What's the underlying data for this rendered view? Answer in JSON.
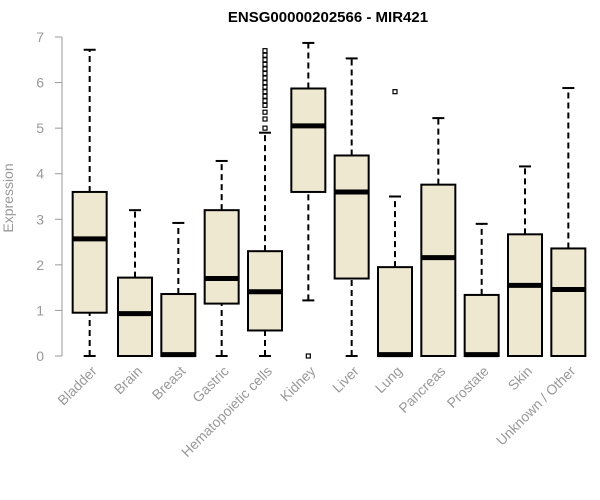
{
  "chart_data": {
    "type": "boxplot",
    "title": "ENSG00000202566 - MIR421",
    "ylabel": "Expression",
    "ylim": [
      0,
      7
    ],
    "yticks": [
      0,
      1,
      2,
      3,
      4,
      5,
      6,
      7
    ],
    "grid": false,
    "colors": {
      "box_fill": "#EFE8D0",
      "stroke": "#000000",
      "axis": "#999999"
    },
    "categories": [
      "Bladder",
      "Brain",
      "Breast",
      "Gastric",
      "Hematopoietic cells",
      "Kidney",
      "Liver",
      "Lung",
      "Pancreas",
      "Prostate",
      "Skin",
      "Unknown / Other"
    ],
    "boxes": [
      {
        "name": "Bladder",
        "min": 0,
        "q1": 0.95,
        "median": 2.57,
        "q3": 3.6,
        "max": 6.72,
        "outliers": []
      },
      {
        "name": "Brain",
        "min": 0,
        "q1": 0,
        "median": 0.93,
        "q3": 1.72,
        "max": 3.2,
        "outliers": []
      },
      {
        "name": "Breast",
        "min": 0,
        "q1": 0,
        "median": 0.03,
        "q3": 1.36,
        "max": 2.92,
        "outliers": []
      },
      {
        "name": "Gastric",
        "min": 0,
        "q1": 1.15,
        "median": 1.7,
        "q3": 3.2,
        "max": 4.28,
        "outliers": []
      },
      {
        "name": "Hematopoietic cells",
        "min": 0,
        "q1": 0.56,
        "median": 1.41,
        "q3": 2.3,
        "max": 4.9,
        "outliers": [
          5.0,
          5.2,
          5.35,
          5.5,
          5.6,
          5.7,
          5.8,
          5.9,
          6.0,
          6.1,
          6.2,
          6.3,
          6.4,
          6.5,
          6.6,
          6.7
        ]
      },
      {
        "name": "Kidney",
        "min": 1.22,
        "q1": 3.6,
        "median": 5.05,
        "q3": 5.87,
        "max": 6.87,
        "outliers": [
          0
        ]
      },
      {
        "name": "Liver",
        "min": 0,
        "q1": 1.7,
        "median": 3.6,
        "q3": 4.4,
        "max": 6.53,
        "outliers": []
      },
      {
        "name": "Lung",
        "min": 0,
        "q1": 0,
        "median": 0.03,
        "q3": 1.95,
        "max": 3.5,
        "outliers": [
          5.8
        ]
      },
      {
        "name": "Pancreas",
        "min": 0,
        "q1": 0,
        "median": 2.16,
        "q3": 3.76,
        "max": 5.22,
        "outliers": []
      },
      {
        "name": "Prostate",
        "min": 0,
        "q1": 0,
        "median": 0.03,
        "q3": 1.34,
        "max": 2.9,
        "outliers": []
      },
      {
        "name": "Skin",
        "min": 0,
        "q1": 0,
        "median": 1.55,
        "q3": 2.67,
        "max": 4.16,
        "outliers": []
      },
      {
        "name": "Unknown / Other",
        "min": 0,
        "q1": 0,
        "median": 1.46,
        "q3": 2.36,
        "max": 5.88,
        "outliers": []
      }
    ]
  }
}
